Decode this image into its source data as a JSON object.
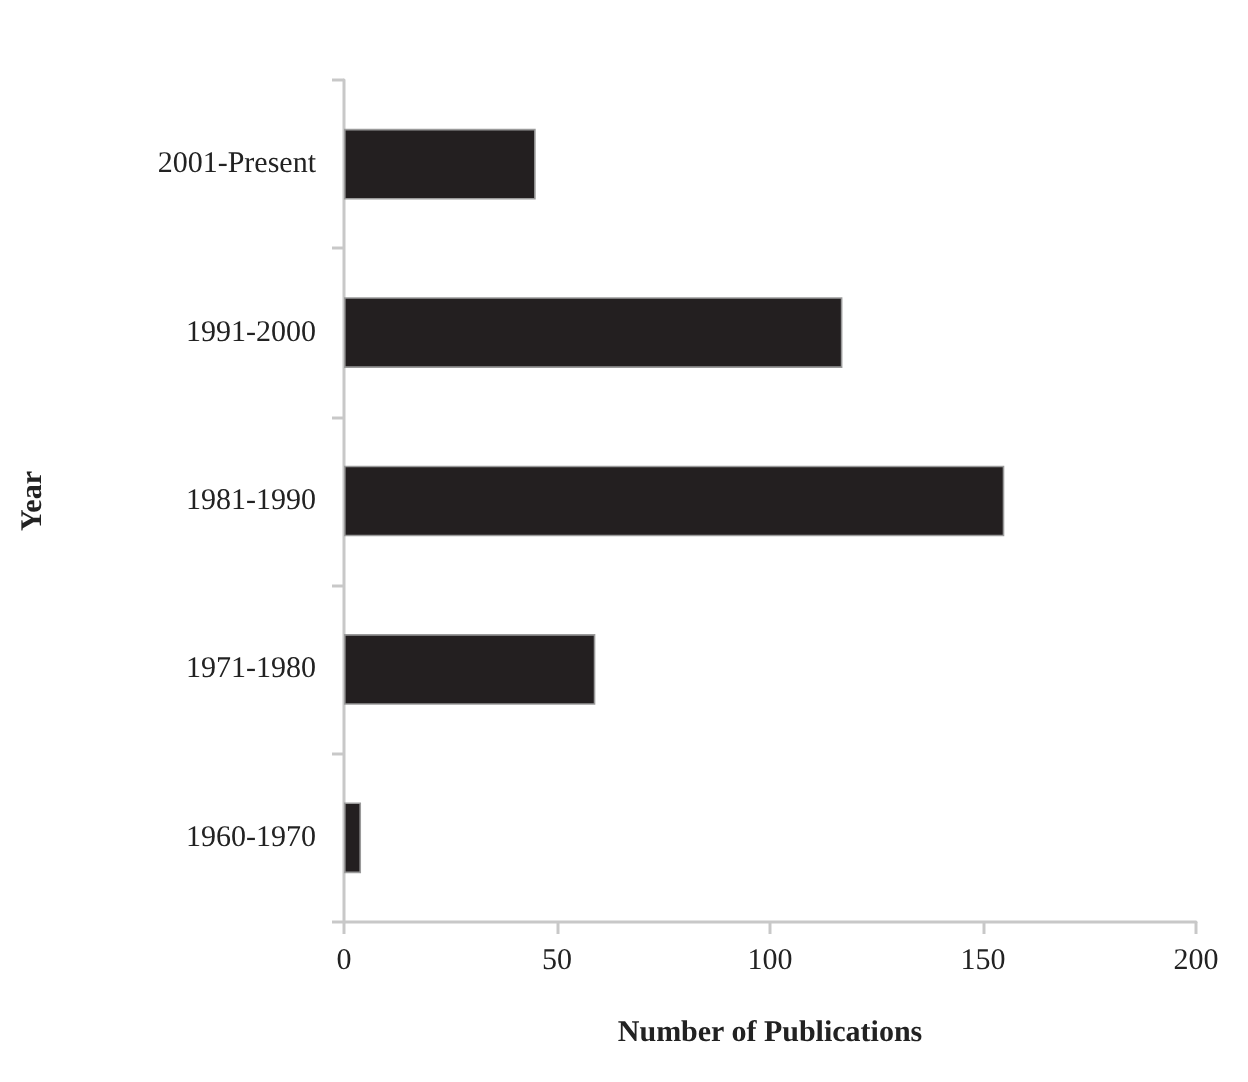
{
  "chart_data": {
    "type": "bar",
    "orientation": "horizontal",
    "xlabel": "Number of Publications",
    "ylabel": "Year",
    "categories": [
      "2001-Present",
      "1991-2000",
      "1981-1990",
      "1971-1980",
      "1960-1970"
    ],
    "values": [
      45,
      117,
      155,
      59,
      4
    ],
    "color": "#231f20",
    "xlim": [
      0,
      200
    ],
    "xticks": [
      0,
      50,
      100,
      150,
      200
    ]
  }
}
